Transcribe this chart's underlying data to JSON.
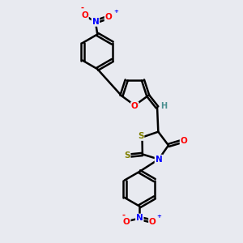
{
  "background_color": "#e8eaf0",
  "bond_color": "#000000",
  "atom_colors": {
    "O": "#ff0000",
    "N": "#0000ff",
    "S": "#808000",
    "H": "#4a9090",
    "C": "#000000"
  },
  "figsize": [
    3.0,
    3.0
  ],
  "dpi": 100
}
